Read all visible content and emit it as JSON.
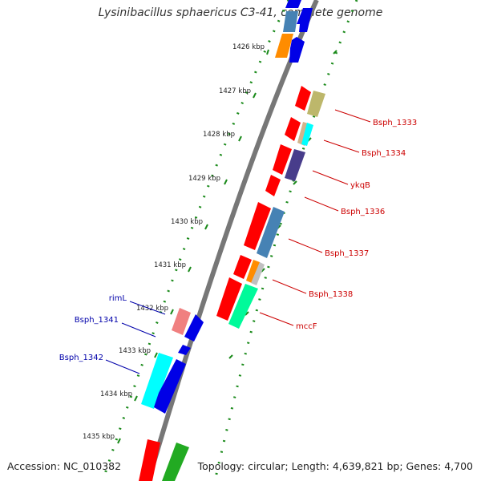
{
  "header": {
    "title": "Lysinibacillus sphaericus C3-41, complete genome"
  },
  "footer": {
    "accession": "Accession: NC_010382",
    "summary": "Topology: circular; Length: 4,639,821 bp; Genes: 4,700"
  },
  "ticks": [
    "1426 kbp",
    "1427 kbp",
    "1428 kbp",
    "1429 kbp",
    "1430 kbp",
    "1431 kbp",
    "1432 kbp",
    "1433 kbp",
    "1434 kbp",
    "1435 kbp"
  ],
  "labels_right": [
    "Bsph_1333",
    "Bsph_1334",
    "ykqB",
    "Bsph_1336",
    "Bsph_1337",
    "Bsph_1338",
    "mccF"
  ],
  "labels_left": [
    "rimL",
    "Bsph_1341",
    "Bsph_1342"
  ],
  "colors": {
    "red": "#ff0000",
    "blue": "#0000e6",
    "khaki": "#bdb76b",
    "cyan": "#00ffff",
    "slate": "#483d8b",
    "steel": "#4682b4",
    "orange": "#ff8c00",
    "tan": "#d2b48c",
    "spring": "#00fa9a",
    "lightcoral": "#f08080",
    "green": "#22aa22",
    "tickgreen": "#1a8a1a",
    "label_right": "#cc0000",
    "label_left": "#0000aa"
  }
}
